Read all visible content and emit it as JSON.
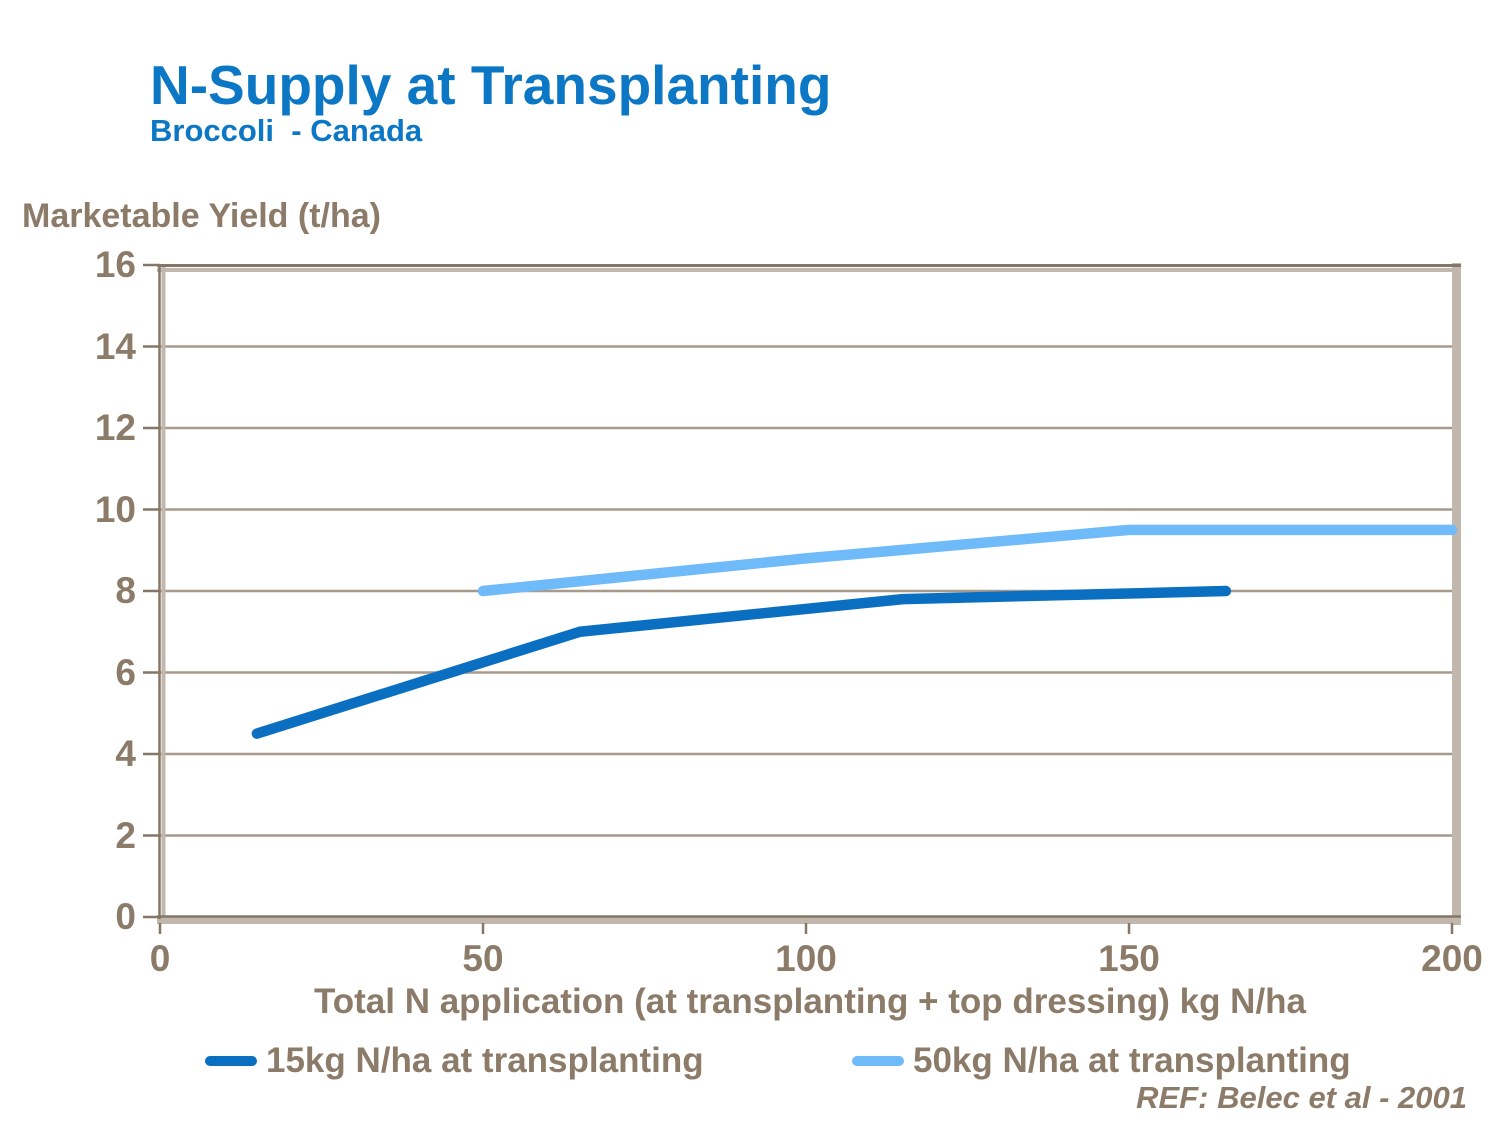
{
  "header": {
    "title": "N-Supply at Transplanting",
    "subtitle": "Broccoli  - Canada"
  },
  "chart_data": {
    "type": "line",
    "title": "N-Supply at Transplanting",
    "subtitle": "Broccoli - Canada",
    "ylabel": "Marketable Yield (t/ha)",
    "xlabel": "Total N application (at transplanting + top dressing) kg N/ha",
    "xlim": [
      0,
      200
    ],
    "ylim": [
      0,
      16
    ],
    "xticks": [
      0,
      50,
      100,
      150,
      200
    ],
    "yticks": [
      16,
      14,
      12,
      10,
      8,
      6,
      4,
      2,
      0
    ],
    "grid": "horizontal gridlines every 2 t/ha",
    "legend_position": "bottom",
    "series": [
      {
        "name": "15kg N/ha at transplanting",
        "color": "#0b6fc1",
        "points": [
          [
            15,
            4.5
          ],
          [
            65,
            7.0
          ],
          [
            115,
            7.8
          ],
          [
            165,
            8.0
          ]
        ]
      },
      {
        "name": "50kg N/ha at transplanting",
        "color": "#6fbaf8",
        "points": [
          [
            50,
            8.0
          ],
          [
            100,
            8.8
          ],
          [
            150,
            9.5
          ],
          [
            200,
            9.5
          ]
        ]
      }
    ]
  },
  "footer": {
    "reference": "REF: Belec et al - 2001"
  },
  "colors": {
    "title_blue": "#0b77c5",
    "text_brown": "#8b7b68",
    "gridline": "#a79a8c",
    "axis_dark": "#857767",
    "axis_light": "#c2b7ad"
  }
}
